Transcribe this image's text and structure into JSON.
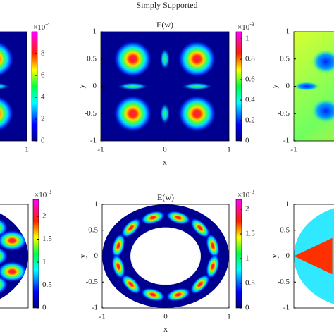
{
  "title": "Simply Supported",
  "chart_data": [
    {
      "type": "heatmap",
      "shape": "rect",
      "xlim": [
        -1,
        1
      ],
      "ylim": [
        -1,
        1
      ],
      "xticks": [
        1
      ],
      "yticks": [],
      "colorbar": {
        "lim": [
          0,
          10
        ],
        "ticks": [
          0,
          2,
          4,
          6,
          8
        ],
        "base": "×10",
        "exponent": "-4"
      }
    },
    {
      "type": "heatmap",
      "shape": "rect",
      "title": "E(w)",
      "xlabel": "x",
      "ylabel": "y",
      "xlim": [
        -1,
        1
      ],
      "ylim": [
        -1,
        1
      ],
      "xticks": [
        -1,
        0,
        1
      ],
      "yticks": [
        -1,
        -0.5,
        0,
        0.5,
        1
      ],
      "colorbar": {
        "lim": [
          0,
          1.07
        ],
        "ticks": [
          0,
          0.2,
          0.4,
          0.6,
          0.8,
          1
        ],
        "base": "×10",
        "exponent": "-3"
      }
    },
    {
      "type": "heatmap",
      "shape": "rect",
      "ylabel": "y",
      "xlim": [
        -1,
        1
      ],
      "ylim": [
        -1,
        1
      ],
      "xticks": [
        -1
      ],
      "yticks": [
        -1,
        -0.5,
        0,
        0.5,
        1
      ]
    },
    {
      "type": "heatmap",
      "shape": "disk",
      "xlim": [
        -1,
        1
      ],
      "ylim": [
        -1,
        1
      ],
      "xticks": [],
      "yticks": [],
      "colorbar": {
        "lim": [
          0,
          2.37
        ],
        "ticks": [
          0,
          0.5,
          1,
          1.5,
          2
        ],
        "base": "×10",
        "exponent": "-3"
      }
    },
    {
      "type": "heatmap",
      "shape": "annulus",
      "title": "E(w)",
      "xlabel": "x",
      "ylabel": "y",
      "xlim": [
        -1,
        1
      ],
      "ylim": [
        -1,
        1
      ],
      "xticks": [
        -1,
        0,
        1
      ],
      "yticks": [
        -1,
        -0.5,
        0,
        0.5,
        1
      ],
      "colorbar": {
        "lim": [
          0,
          2.2
        ],
        "ticks": [
          0,
          0.5,
          1,
          1.5,
          2
        ],
        "base": "×10",
        "exponent": "-3"
      }
    },
    {
      "type": "heatmap",
      "shape": "disk",
      "ylabel": "y",
      "xlim": [
        -1,
        1
      ],
      "ylim": [
        -1,
        1
      ],
      "xticks": [],
      "yticks": [
        -1,
        -0.5,
        0,
        0.5,
        1
      ]
    }
  ]
}
